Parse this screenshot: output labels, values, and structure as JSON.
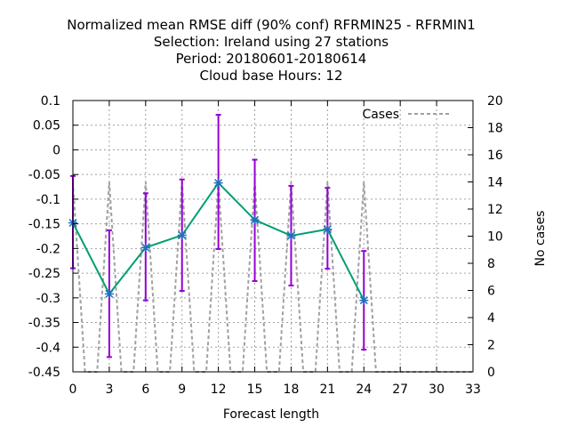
{
  "chart_data": {
    "type": "line",
    "title_lines": [
      "Normalized mean RMSE diff (90% conf) RFRMIN25 - RFRMIN1",
      "Selection: Ireland using    27 stations",
      "Period: 20180601-20180614",
      "Cloud base   Hours:  12"
    ],
    "xlabel": "Forecast length",
    "ylabel": "",
    "y2label": "No cases",
    "xlim": [
      0,
      33
    ],
    "ylim": [
      -0.45,
      0.1
    ],
    "y2lim": [
      0,
      20
    ],
    "xticks": [
      "0",
      "3",
      "6",
      "9",
      "12",
      "15",
      "18",
      "21",
      "24",
      "27",
      "30",
      "33"
    ],
    "yticks": [
      "0.1",
      "0.05",
      "0",
      "-0.05",
      "-0.1",
      "-0.15",
      "-0.2",
      "-0.25",
      "-0.3",
      "-0.35",
      "-0.4",
      "-0.45"
    ],
    "y2ticks": [
      "20",
      "18",
      "16",
      "14",
      "12",
      "10",
      "8",
      "6",
      "4",
      "2",
      "0"
    ],
    "grid": true,
    "legend_position": "top-right",
    "series": [
      {
        "name": "",
        "axis": "left",
        "color": "#009e73",
        "marker_color": "#1f6fbf",
        "errorbar_color": "#9400d3",
        "x": [
          0,
          3,
          6,
          9,
          12,
          15,
          18,
          21,
          24
        ],
        "y": [
          -0.148,
          -0.292,
          -0.198,
          -0.173,
          -0.067,
          -0.142,
          -0.174,
          -0.161,
          -0.305
        ],
        "err_low": [
          -0.24,
          -0.42,
          -0.305,
          -0.286,
          -0.201,
          -0.266,
          -0.275,
          -0.241,
          -0.405
        ],
        "err_high": [
          -0.053,
          -0.163,
          -0.088,
          -0.06,
          0.071,
          -0.02,
          -0.073,
          -0.077,
          -0.205
        ]
      },
      {
        "name": "Cases",
        "axis": "right",
        "color": "#a0a0a0",
        "dashed": true,
        "x": [
          0,
          1,
          2,
          3,
          4,
          5,
          6,
          7,
          8,
          9,
          10,
          11,
          12,
          13,
          14,
          15,
          16,
          17,
          18,
          19,
          20,
          21,
          22,
          23,
          24,
          25,
          26,
          27,
          28,
          29,
          30,
          31,
          32,
          33
        ],
        "y": [
          14,
          0,
          0,
          14,
          0,
          0,
          14,
          0,
          0,
          14,
          0,
          0,
          14,
          0,
          0,
          14,
          0,
          0,
          14,
          0,
          0,
          14,
          0,
          0,
          14,
          0,
          0,
          0,
          0,
          0,
          0,
          0,
          0,
          0
        ]
      }
    ]
  }
}
